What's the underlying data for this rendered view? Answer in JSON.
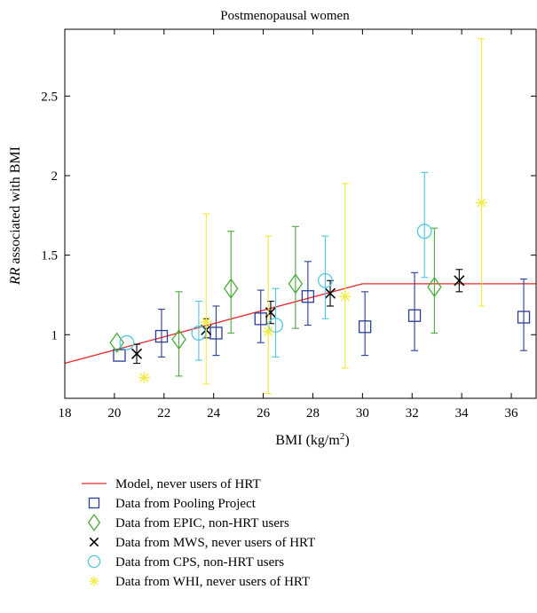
{
  "chart_data": {
    "type": "scatter",
    "title": "Postmenopausal women",
    "xlabel_main": "BMI (kg/m",
    "xlabel_sup": "2",
    "xlabel_end": ")",
    "ylabel_italic": "RR",
    "ylabel_rest": " associated with BMI",
    "xlim": [
      18,
      37
    ],
    "ylim": [
      0.6,
      2.92
    ],
    "xticks": [
      18,
      20,
      22,
      24,
      26,
      28,
      30,
      32,
      34,
      36
    ],
    "yticks": [
      1,
      1.5,
      2,
      2.5
    ],
    "ytick_labels": [
      "1",
      "1.5",
      "2",
      "2.5"
    ],
    "grid": false,
    "legend_position": "below",
    "model": {
      "name": "Model, never users of HRT",
      "color": "#e8262a",
      "x": [
        18,
        30,
        37
      ],
      "y": [
        0.82,
        1.32,
        1.32
      ]
    },
    "series": [
      {
        "name": "Data from Pooling Project",
        "marker": "square",
        "color": "#2a3d96",
        "points": [
          {
            "x": 20.2,
            "y": 0.87,
            "lo": 0.87,
            "hi": 0.87
          },
          {
            "x": 21.9,
            "y": 0.99,
            "lo": 0.86,
            "hi": 1.16
          },
          {
            "x": 24.1,
            "y": 1.01,
            "lo": 0.87,
            "hi": 1.18
          },
          {
            "x": 25.9,
            "y": 1.1,
            "lo": 0.95,
            "hi": 1.28
          },
          {
            "x": 27.8,
            "y": 1.24,
            "lo": 1.06,
            "hi": 1.46
          },
          {
            "x": 30.1,
            "y": 1.05,
            "lo": 0.87,
            "hi": 1.27
          },
          {
            "x": 32.1,
            "y": 1.12,
            "lo": 0.9,
            "hi": 1.39
          },
          {
            "x": 36.5,
            "y": 1.11,
            "lo": 0.9,
            "hi": 1.35
          }
        ]
      },
      {
        "name": "Data from EPIC, non-HRT users",
        "marker": "diamond",
        "color": "#4aaa3a",
        "points": [
          {
            "x": 20.1,
            "y": 0.95,
            "lo": 0.95,
            "hi": 0.95
          },
          {
            "x": 22.6,
            "y": 0.97,
            "lo": 0.74,
            "hi": 1.27
          },
          {
            "x": 24.7,
            "y": 1.29,
            "lo": 1.01,
            "hi": 1.65
          },
          {
            "x": 27.3,
            "y": 1.32,
            "lo": 1.04,
            "hi": 1.68
          },
          {
            "x": 32.9,
            "y": 1.3,
            "lo": 1.01,
            "hi": 1.67
          }
        ]
      },
      {
        "name": "Data from MWS, never users of HRT",
        "marker": "x",
        "color": "#000000",
        "points": [
          {
            "x": 20.9,
            "y": 0.88,
            "lo": 0.82,
            "hi": 0.94
          },
          {
            "x": 23.7,
            "y": 1.03,
            "lo": 0.98,
            "hi": 1.1
          },
          {
            "x": 26.3,
            "y": 1.14,
            "lo": 1.07,
            "hi": 1.21
          },
          {
            "x": 28.7,
            "y": 1.26,
            "lo": 1.18,
            "hi": 1.34
          },
          {
            "x": 33.9,
            "y": 1.34,
            "lo": 1.27,
            "hi": 1.41
          }
        ]
      },
      {
        "name": "Data from CPS, non-HRT users",
        "marker": "circle",
        "color": "#52c6de",
        "points": [
          {
            "x": 20.5,
            "y": 0.95,
            "lo": 0.95,
            "hi": 0.95
          },
          {
            "x": 23.4,
            "y": 1.01,
            "lo": 0.84,
            "hi": 1.21
          },
          {
            "x": 26.5,
            "y": 1.06,
            "lo": 0.86,
            "hi": 1.29
          },
          {
            "x": 28.5,
            "y": 1.34,
            "lo": 1.1,
            "hi": 1.62
          },
          {
            "x": 32.5,
            "y": 1.65,
            "lo": 1.36,
            "hi": 2.02
          }
        ]
      },
      {
        "name": "Data from WHI, never users of HRT",
        "marker": "asterisk",
        "color": "#f2ea3c",
        "points": [
          {
            "x": 21.2,
            "y": 0.73,
            "lo": 0.73,
            "hi": 0.73
          },
          {
            "x": 23.7,
            "y": 1.08,
            "lo": 0.69,
            "hi": 1.76
          },
          {
            "x": 26.2,
            "y": 1.02,
            "lo": 0.63,
            "hi": 1.62
          },
          {
            "x": 29.3,
            "y": 1.24,
            "lo": 0.79,
            "hi": 1.95
          },
          {
            "x": 34.8,
            "y": 1.83,
            "lo": 1.18,
            "hi": 2.86
          }
        ]
      }
    ]
  }
}
